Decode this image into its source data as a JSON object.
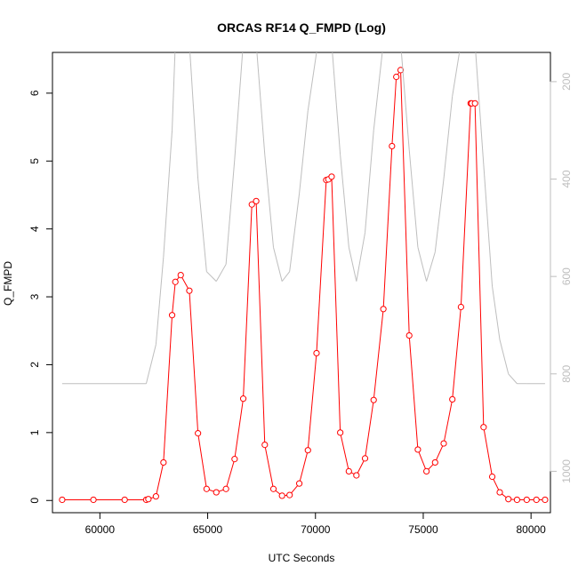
{
  "chart_data": {
    "type": "line",
    "title": "ORCAS RF14 Q_FMPD (Log)",
    "xlabel": "UTC Seconds",
    "ylabel": "Q_FMPD",
    "xlim": [
      57800,
      80900
    ],
    "ylim": [
      -0.18,
      6.6
    ],
    "y2lim": [
      1085,
      140
    ],
    "x_ticks": [
      60000,
      65000,
      70000,
      75000,
      80000
    ],
    "y_ticks": [
      0,
      1,
      2,
      3,
      4,
      5,
      6
    ],
    "y2_ticks": [
      200,
      400,
      600,
      800,
      1000
    ],
    "y2_reversed": true,
    "colors": {
      "primary": "#ff0000",
      "secondary": "#bebebe",
      "axis": "#000000"
    },
    "series": [
      {
        "axis": "left",
        "color": "#ff0000",
        "style": "line+circles",
        "x": [
          58250,
          59700,
          61150,
          62150,
          62250,
          62600,
          62950,
          63350,
          63500,
          63750,
          64150,
          64550,
          64950,
          65400,
          65850,
          66250,
          66650,
          67050,
          67250,
          67650,
          68050,
          68450,
          68800,
          69250,
          69650,
          70050,
          70500,
          70600,
          70750,
          71150,
          71550,
          71900,
          72300,
          72700,
          73150,
          73550,
          73750,
          73950,
          74350,
          74750,
          75150,
          75550,
          75950,
          76350,
          76750,
          77200,
          77250,
          77400,
          77800,
          78200,
          78550,
          78950,
          79350,
          79800,
          80250,
          80650
        ],
        "y": [
          0.01,
          0.01,
          0.01,
          0.01,
          0.02,
          0.06,
          0.56,
          2.73,
          3.22,
          3.32,
          3.09,
          0.99,
          0.17,
          0.12,
          0.17,
          0.61,
          1.5,
          4.36,
          4.41,
          0.82,
          0.17,
          0.07,
          0.08,
          0.25,
          0.74,
          2.17,
          4.72,
          4.73,
          4.77,
          1.0,
          0.43,
          0.37,
          0.62,
          1.48,
          2.82,
          5.22,
          6.24,
          6.34,
          2.43,
          0.75,
          0.43,
          0.56,
          0.84,
          1.49,
          2.85,
          5.85,
          5.85,
          5.85,
          1.08,
          0.35,
          0.12,
          0.02,
          0.01,
          0.01,
          0.01,
          0.01
        ]
      },
      {
        "axis": "right",
        "color": "#bebebe",
        "style": "line",
        "x": [
          58250,
          62150,
          62600,
          62950,
          63350,
          63500,
          63750,
          64150,
          64550,
          64950,
          65400,
          65850,
          66250,
          66650,
          67050,
          67250,
          67650,
          68050,
          68450,
          68800,
          69250,
          69650,
          70050,
          70500,
          70750,
          71150,
          71550,
          71900,
          72300,
          72700,
          73150,
          73550,
          73950,
          74350,
          74750,
          75150,
          75550,
          75950,
          76350,
          76750,
          77250,
          77400,
          77800,
          78200,
          78550,
          78950,
          79350,
          79800,
          80650
        ],
        "y": [
          820,
          820,
          740,
          560,
          300,
          120,
          120,
          120,
          400,
          590,
          610,
          575,
          360,
          120,
          120,
          120,
          350,
          540,
          610,
          590,
          430,
          260,
          140,
          120,
          120,
          350,
          540,
          610,
          510,
          300,
          120,
          120,
          120,
          340,
          540,
          610,
          550,
          400,
          230,
          120,
          120,
          120,
          370,
          620,
          730,
          800,
          820,
          820,
          820
        ]
      }
    ]
  }
}
